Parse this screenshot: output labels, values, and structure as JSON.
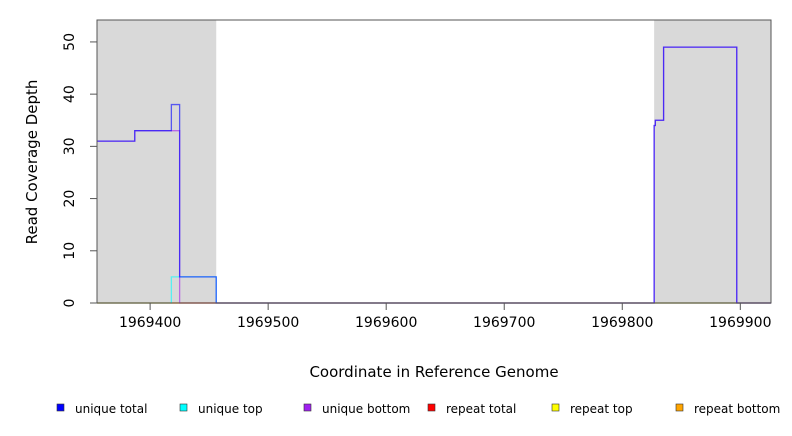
{
  "chart_data": {
    "type": "line",
    "title": "",
    "xlabel": "Coordinate in Reference Genome",
    "ylabel": "Read Coverage Depth",
    "xlim": [
      1969355,
      1969926
    ],
    "ylim": [
      0,
      54.2
    ],
    "x_ticks": [
      1969400,
      1969500,
      1969600,
      1969700,
      1969800,
      1969900
    ],
    "x_tick_labels": [
      "1969400",
      "1969500",
      "1969600",
      "1969700",
      "1969800",
      "1969900"
    ],
    "y_ticks": [
      0,
      10,
      20,
      30,
      40,
      50
    ],
    "y_tick_labels": [
      "0",
      "10",
      "20",
      "30",
      "40",
      "50"
    ],
    "grid": false,
    "legend_placement": "bottom",
    "shaded_regions": [
      [
        1969355,
        1969456
      ],
      [
        1969827,
        1969926
      ]
    ],
    "shade_color": "#d9d9d9",
    "series": [
      {
        "name": "unique total",
        "color": "#0000ff",
        "x": [
          1969355,
          1969387,
          1969418,
          1969425,
          1969456,
          1969827,
          1969828,
          1969835,
          1969897,
          1969926
        ],
        "y": [
          31,
          33,
          38,
          5,
          0,
          34,
          35,
          49,
          0,
          0
        ]
      },
      {
        "name": "unique top",
        "color": "#00ffff",
        "x": [
          1969355,
          1969418,
          1969456,
          1969926
        ],
        "y": [
          0,
          5,
          0,
          0
        ]
      },
      {
        "name": "unique bottom",
        "color": "#a020f0",
        "x": [
          1969355,
          1969387,
          1969425,
          1969827,
          1969828,
          1969835,
          1969897,
          1969926
        ],
        "y": [
          31,
          33,
          0,
          34,
          35,
          49,
          0,
          0
        ]
      },
      {
        "name": "repeat total",
        "color": "#ff0000",
        "x": [
          1969355,
          1969926
        ],
        "y": [
          0,
          0
        ]
      },
      {
        "name": "repeat top",
        "color": "#ffff00",
        "x": [
          1969355,
          1969926
        ],
        "y": [
          0,
          0
        ]
      },
      {
        "name": "repeat bottom",
        "color": "#ffa500",
        "x": [
          1969355,
          1969926
        ],
        "y": [
          0,
          0
        ]
      }
    ]
  }
}
